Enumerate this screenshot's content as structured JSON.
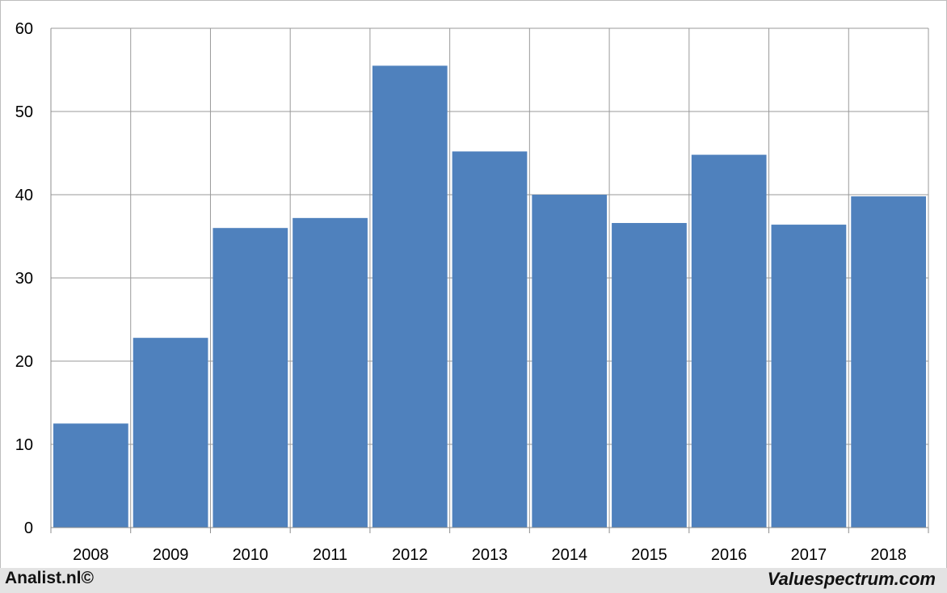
{
  "chart_data": {
    "type": "bar",
    "categories": [
      "2008",
      "2009",
      "2010",
      "2011",
      "2012",
      "2013",
      "2014",
      "2015",
      "2016",
      "2017",
      "2018"
    ],
    "values": [
      12.5,
      22.8,
      36.0,
      37.2,
      55.5,
      45.2,
      40.0,
      36.6,
      44.8,
      36.4,
      39.8
    ],
    "ylim": [
      0,
      60
    ],
    "yticks": [
      0,
      10,
      20,
      30,
      40,
      50,
      60
    ],
    "grid": true,
    "bar_color": "#4f81bd"
  },
  "footer": {
    "left_text": "Analist.nl©",
    "right_text": "Valuespectrum.com"
  }
}
